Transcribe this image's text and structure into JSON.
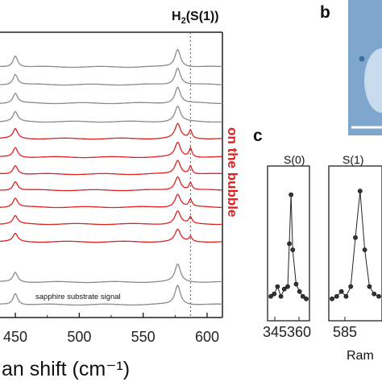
{
  "panels": [
    {
      "id": "a",
      "chart_data": {
        "type": "line",
        "title": "",
        "xlabel": "an shift (cm⁻¹)",
        "ylabel": "",
        "xlim": [
          438,
          612
        ],
        "x_ticks": [
          450,
          500,
          550,
          600
        ],
        "x_tick_labels": [
          "450",
          "500",
          "550",
          "600"
        ],
        "x_tick_labels_leading": [
          "450"
        ],
        "peak_label": "H₂(S(1))",
        "peak_line_x": 587,
        "substrate_label": "sapphire substrate signal",
        "region_label": "on the bubble",
        "series": [
          {
            "color": "#8a8a8a",
            "group": "off",
            "baseline": 83,
            "peaks": [
              [
                450,
                14
              ],
              [
                577,
                22
              ]
            ]
          },
          {
            "color": "#8a8a8a",
            "group": "off",
            "baseline": 105,
            "peaks": [
              [
                450,
                13
              ],
              [
                577,
                21
              ]
            ]
          },
          {
            "color": "#8a8a8a",
            "group": "off",
            "baseline": 128,
            "peaks": [
              [
                450,
                12
              ],
              [
                577,
                20
              ]
            ]
          },
          {
            "color": "#8a8a8a",
            "group": "off",
            "baseline": 151,
            "peaks": [
              [
                450,
                12
              ],
              [
                577,
                19
              ]
            ]
          },
          {
            "color": "#e02020",
            "group": "on",
            "baseline": 172,
            "peaks": [
              [
                450,
                12
              ],
              [
                577,
                18
              ],
              [
                587,
                10
              ]
            ]
          },
          {
            "color": "#e02020",
            "group": "on",
            "baseline": 195,
            "peaks": [
              [
                450,
                12
              ],
              [
                577,
                18
              ],
              [
                587,
                11
              ]
            ]
          },
          {
            "color": "#e02020",
            "group": "on",
            "baseline": 216,
            "peaks": [
              [
                450,
                11
              ],
              [
                577,
                17
              ],
              [
                587,
                10
              ]
            ]
          },
          {
            "color": "#e02020",
            "group": "on",
            "baseline": 236,
            "peaks": [
              [
                450,
                11
              ],
              [
                577,
                17
              ],
              [
                587,
                9
              ]
            ]
          },
          {
            "color": "#e02020",
            "group": "on",
            "baseline": 257,
            "peaks": [
              [
                450,
                11
              ],
              [
                577,
                16
              ],
              [
                587,
                9
              ]
            ]
          },
          {
            "color": "#e02020",
            "group": "on",
            "baseline": 278,
            "peaks": [
              [
                450,
                10
              ],
              [
                577,
                16
              ],
              [
                587,
                8
              ]
            ]
          },
          {
            "color": "#e02020",
            "group": "on",
            "baseline": 300,
            "peaks": [
              [
                450,
                10
              ],
              [
                577,
                15
              ],
              [
                587,
                6
              ]
            ]
          },
          {
            "color": "#8a8a8a",
            "group": "off",
            "baseline": 350,
            "peaks": [
              [
                450,
                12
              ],
              [
                577,
                22
              ]
            ]
          },
          {
            "color": "#8a8a8a",
            "group": "substrate",
            "baseline": 378,
            "peaks": [
              [
                450,
                14
              ],
              [
                577,
                24
              ]
            ]
          }
        ]
      }
    },
    {
      "id": "c",
      "chart_data": [
        {
          "type": "line",
          "title": "S(0)",
          "x_tick_labels": [
            "345",
            "360"
          ],
          "x": [
            341,
            343,
            345,
            347,
            349,
            351,
            352,
            353,
            354,
            356,
            358,
            360,
            362
          ],
          "y": [
            0.12,
            0.14,
            0.2,
            0.12,
            0.18,
            0.2,
            0.55,
            0.95,
            0.5,
            0.22,
            0.16,
            0.12,
            0.1
          ]
        },
        {
          "type": "line",
          "title": "S(1)",
          "x_tick_labels": [
            "585"
          ],
          "x": [
            581,
            582,
            583,
            584,
            585,
            586,
            587,
            588,
            589,
            590,
            591
          ],
          "y": [
            0.1,
            0.12,
            0.16,
            0.12,
            0.2,
            0.6,
            0.98,
            0.5,
            0.2,
            0.14,
            0.12
          ]
        }
      ],
      "xlabel_partial": "Ram"
    }
  ],
  "panel_labels": {
    "b": "b",
    "c": "c"
  },
  "image_b": {
    "background": "#7fa6cc",
    "scale_bar_color": "#ffffff"
  },
  "colors": {
    "on_bubble": "#e02020",
    "off_bubble": "#8a8a8a",
    "axis": "#222222"
  }
}
